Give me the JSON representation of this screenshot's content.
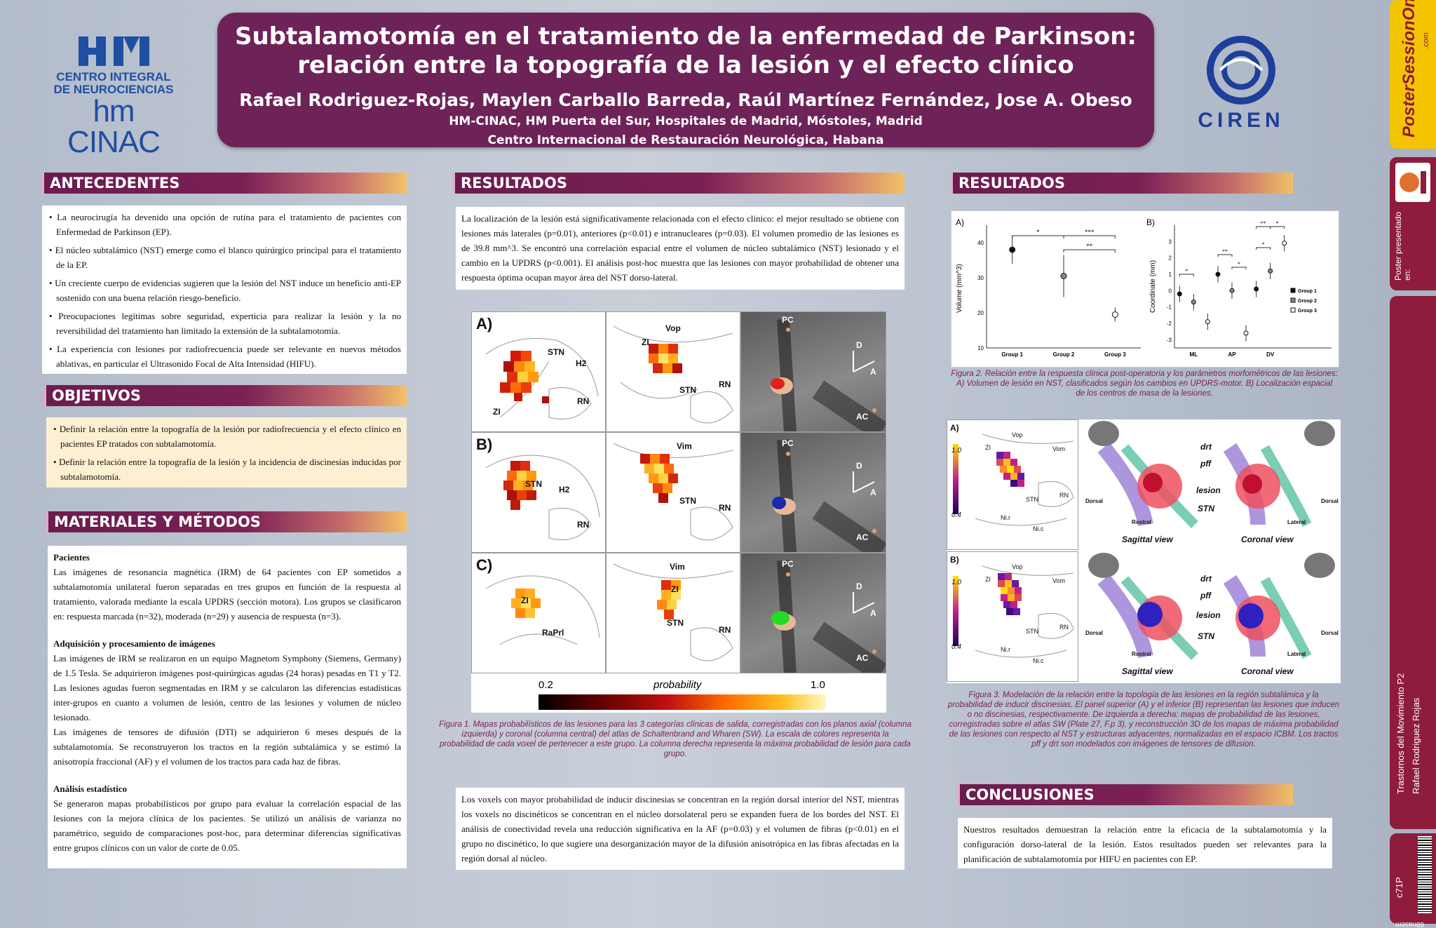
{
  "header": {
    "title": "Subtalamotomía en el tratamiento de la enfermedad de Parkinson: relación entre la topografía de la lesión y el efecto clínico",
    "authors": "Rafael Rodriguez-Rojas, Maylen Carballo Barreda, Raúl Martínez Fernández, Jose A. Obeso",
    "aff1": "HM-CINAC, HM Puerta del Sur, Hospitales de Madrid, Móstoles, Madrid",
    "aff2": "Centro Internacional de Restauración Neurológica, Habana"
  },
  "logos": {
    "left_line1": "CENTRO INTEGRAL",
    "left_line2": "DE NEUROCIENCIAS",
    "left_line3": "hm CINAC",
    "right_word": "CIREN"
  },
  "antecedentes": {
    "heading": "ANTECEDENTES",
    "items": [
      "La neurocirugía ha devenido una opción de rutina para el tratamiento de pacientes con Enfermedad de Parkinson (EP).",
      "El núcleo subtalámico (NST) emerge como el blanco quirúrgico principal para el tratamiento de la EP.",
      "Un creciente cuerpo de evidencias sugieren que la lesión del NST induce un beneficio anti-EP sostenido con una buena relación riesgo-beneficio.",
      "Preocupaciones legítimas sobre seguridad, experticia para realizar la lesión y la no reversibilidad del tratamiento han limitado la extensión de la subtalamotomía.",
      "La experiencia con lesiones por radiofrecuencia puede ser relevante en nuevos métodos ablativas, en particular el Ultrasonido Focal de Alta Intensidad (HIFU)."
    ]
  },
  "objetivos": {
    "heading": "OBJETIVOS",
    "items": [
      "Definir la relación entre la topografía de la lesión por radiofrecuencia y el efecto clínico en pacientes EP tratados con subtalamotomía.",
      "Definir la relación entre la topografía de la lesión y la incidencia de discinesias inducidas por subtalamotomía."
    ]
  },
  "metodos": {
    "heading": "MATERIALES Y MÉTODOS",
    "pacientes_title": "Pacientes",
    "pacientes": "Las imágenes de resonancia magnética (IRM) de 64 pacientes con EP sometidos a subtalamotomía unilateral fueron separadas en tres grupos en función de la respuesta al tratamiento, valorada mediante la escala UPDRS (sección motora). Los grupos se clasificaron en: respuesta marcada (n=32), moderada (n=29) y ausencia de respuesta (n=3).",
    "adq_title": "Adquisición y procesamiento de imágenes",
    "adq1": "Las imágenes de IRM se realizaron en un equipo Magnetom Symphony (Siemens, Germany) de 1.5 Tesla. Se adquirieron imágenes post-quirúrgicas agudas (24 horas) pesadas en T1 y T2. Las lesiones agudas fueron segmentadas en IRM y se calcularon las diferencias estadísticas inter-grupos en cuanto a volumen de lesión, centro de las lesiones y volumen de núcleo lesionado.",
    "adq2": "Las imágenes de tensores de difusión (DTI) se adquirieron 6 meses después de la subtalamotomía. Se reconstruyeron los tractos en la región subtalámica y se estimó la anisotropía fraccional (AF) y el volumen de los tractos para cada haz de fibras.",
    "est_title": "Análisis estadístico",
    "est": "Se generaron mapas probabilísticos por grupo para evaluar la correlación espacial de las lesiones con la mejora clínica de los pacientes. Se utilizó un análisis de varianza no paramétrico, seguido de comparaciones post-hoc, para determinar diferencias significativas entre grupos clínicos con un valor de corte de 0.05."
  },
  "resultados1": {
    "heading": "RESULTADOS",
    "text": "La localización de la lesión está significativamente relacionada con el efecto clínico: el mejor resultado se obtiene con lesiones más laterales (p=0.01), anteriores (p<0.01) e intranucleares (p=0.03). El volumen promedio de las lesiones es de 39.8 mm^3. Se encontró una correlación espacial entre el volumen de núcleo subtalámico (NST) lesionado y el cambio en la UPDRS (p<0.001). El análisis post-hoc muestra que las lesiones con mayor probabilidad de obtener una respuesta óptima ocupan mayor área del NST dorso-lateral.",
    "text2": "Los voxels con mayor probabilidad de inducir discinesias se concentran en la región dorsal interior del NST, mientras los voxels no discinéticos se concentran en el núcleo dorsolateral pero se expanden fuera de los bordes del NST. El análisis de conectividad revela una reducción significativa en la AF (p=0.03) y el volumen de fibras (p<0.01) en el grupo no discinético, lo que sugiere una desorganización mayor de la difusión anisotrópica en las fibras afectadas en la región dorsal al núcleo."
  },
  "fig1": {
    "rows": [
      "A)",
      "B)",
      "C)"
    ],
    "labels_a": [
      "STN",
      "H2",
      "RN",
      "ZI",
      "Vop",
      "ZI",
      "STN",
      "RN",
      "PC",
      "D",
      "A",
      "AC"
    ],
    "labels_b": [
      "STN",
      "H2",
      "RN",
      "Vim",
      "STN",
      "RN",
      "PC",
      "D",
      "A",
      "AC"
    ],
    "labels_c": [
      "ZI",
      "RaPrl",
      "Vim",
      "ZI",
      "STN",
      "RN",
      "PC",
      "D",
      "A",
      "AC"
    ],
    "scale_min": "0.2",
    "scale_label": "probability",
    "scale_max": "1.0",
    "caption": "Figura 1. Mapas probabilísticos de las lesiones para las 3 categorías clínicas de salida, corregistradas con los planos axial (columna izquierda) y coronal (columna central) del atlas de Schaltenbrand and Wharen (SW). La escala de colores representa la probabilidad de cada voxel de pertenecer a este grupo. La columna derecha representa la máxima probabilidad de lesión para cada grupo."
  },
  "resultados2": {
    "heading": "RESULTADOS"
  },
  "fig2": {
    "panel_a": "A)",
    "panel_b": "B)",
    "ylabel_a": "Volume (mm^3)",
    "ylabel_b": "Coordinate (mm)",
    "caption": "Figura 2. Relación entre la respuesta clínica post-operatoria y los parámetros morfométricos de las lesiones: A) Volumen de lesión en NST, clasificados según los cambios en UPDRS-motor. B) Localización espacial de los centros de masa de la lesiones."
  },
  "chart_data": [
    {
      "type": "scatter",
      "categories": [
        "Group 1",
        "Group 2",
        "Group 3"
      ],
      "values": [
        38,
        30.5,
        19.5
      ],
      "error": [
        4,
        6,
        2
      ],
      "ylabel": "Volume (mm^3)",
      "ylim": [
        10,
        45
      ],
      "yticks": [
        10,
        20,
        30,
        40
      ],
      "annotations": [
        "*",
        "***",
        "**"
      ]
    },
    {
      "type": "scatter",
      "categories": [
        "ML",
        "AP",
        "DV"
      ],
      "series": [
        {
          "name": "Group 1",
          "values": [
            -0.2,
            1.0,
            0.1
          ]
        },
        {
          "name": "Group 2",
          "values": [
            -0.7,
            0.0,
            1.2
          ]
        },
        {
          "name": "Group 3",
          "values": [
            -1.9,
            -2.6,
            2.9
          ]
        }
      ],
      "ylabel": "Coordinate (mm)",
      "ylim": [
        -3.5,
        4
      ],
      "yticks": [
        -3,
        -2,
        -1,
        0,
        1,
        2,
        3
      ],
      "annotations": [
        "*",
        "**",
        "*",
        "**",
        "*",
        "*"
      ]
    }
  ],
  "fig3": {
    "panel_a": "A)",
    "panel_b": "B)",
    "scale_top": "1.0",
    "scale_bottom": "0.4",
    "atlas_labels": [
      "Vop",
      "Vom",
      "ZI",
      "STN",
      "RN",
      "Ni.r",
      "Ni.c"
    ],
    "tract_labels": [
      "drt",
      "pff",
      "lesion",
      "STN"
    ],
    "view_sag": "Sagittal view",
    "view_cor": "Coronal view",
    "dir_labels": [
      "Dorsal",
      "Rostral",
      "Dorsal",
      "Lateral"
    ],
    "caption": "Figura 3. Modelación de la relación entre la topología de las lesiones en la región subtalámica y la probabilidad de inducir discinesias. El panel superior (A) y el inferior (B) representan las lesiones que inducen o no discinesias, respectivamente. De izquierda a derecha: mapas de probabilidad de las lesiones, corregistradas sobre el atlas SW (Plate 27, F.p 3), y reconstrucción 3D de los mapas de máxima probabilidad de las lesiones con respecto al NST y estructuras adyacentes, normalizadas en el espacio ICBM. Los tractos pff y drt son modelados con imágenes de tensores de difusion."
  },
  "conclusiones": {
    "heading": "CONCLUSIONES",
    "text": "Nuestros resultados demuestran la relación entre la eficacia de la subtalamotomía y la configuración dorso-lateral de la lesión. Estos resultados pueden ser relevantes para la planificación de subtalamotomía por HIFU en pacientes con EP."
  },
  "sidebar": {
    "brand": "PosterSessionOnline",
    "brand_small": ".com",
    "presented": "Poster presentado en:",
    "session": "Trastornos del Movimiento P2",
    "author": "Rafael Rodriguez Rojas",
    "code": "c71P",
    "code2": "68nasem"
  },
  "colors": {
    "header_bg": "#6e2358",
    "bar_start": "#6b1c4f",
    "bar_end": "#f2c168",
    "caption": "#7a1d55",
    "sidebar_red": "#8e1c3c",
    "sidebar_yellow": "#f5c400"
  }
}
